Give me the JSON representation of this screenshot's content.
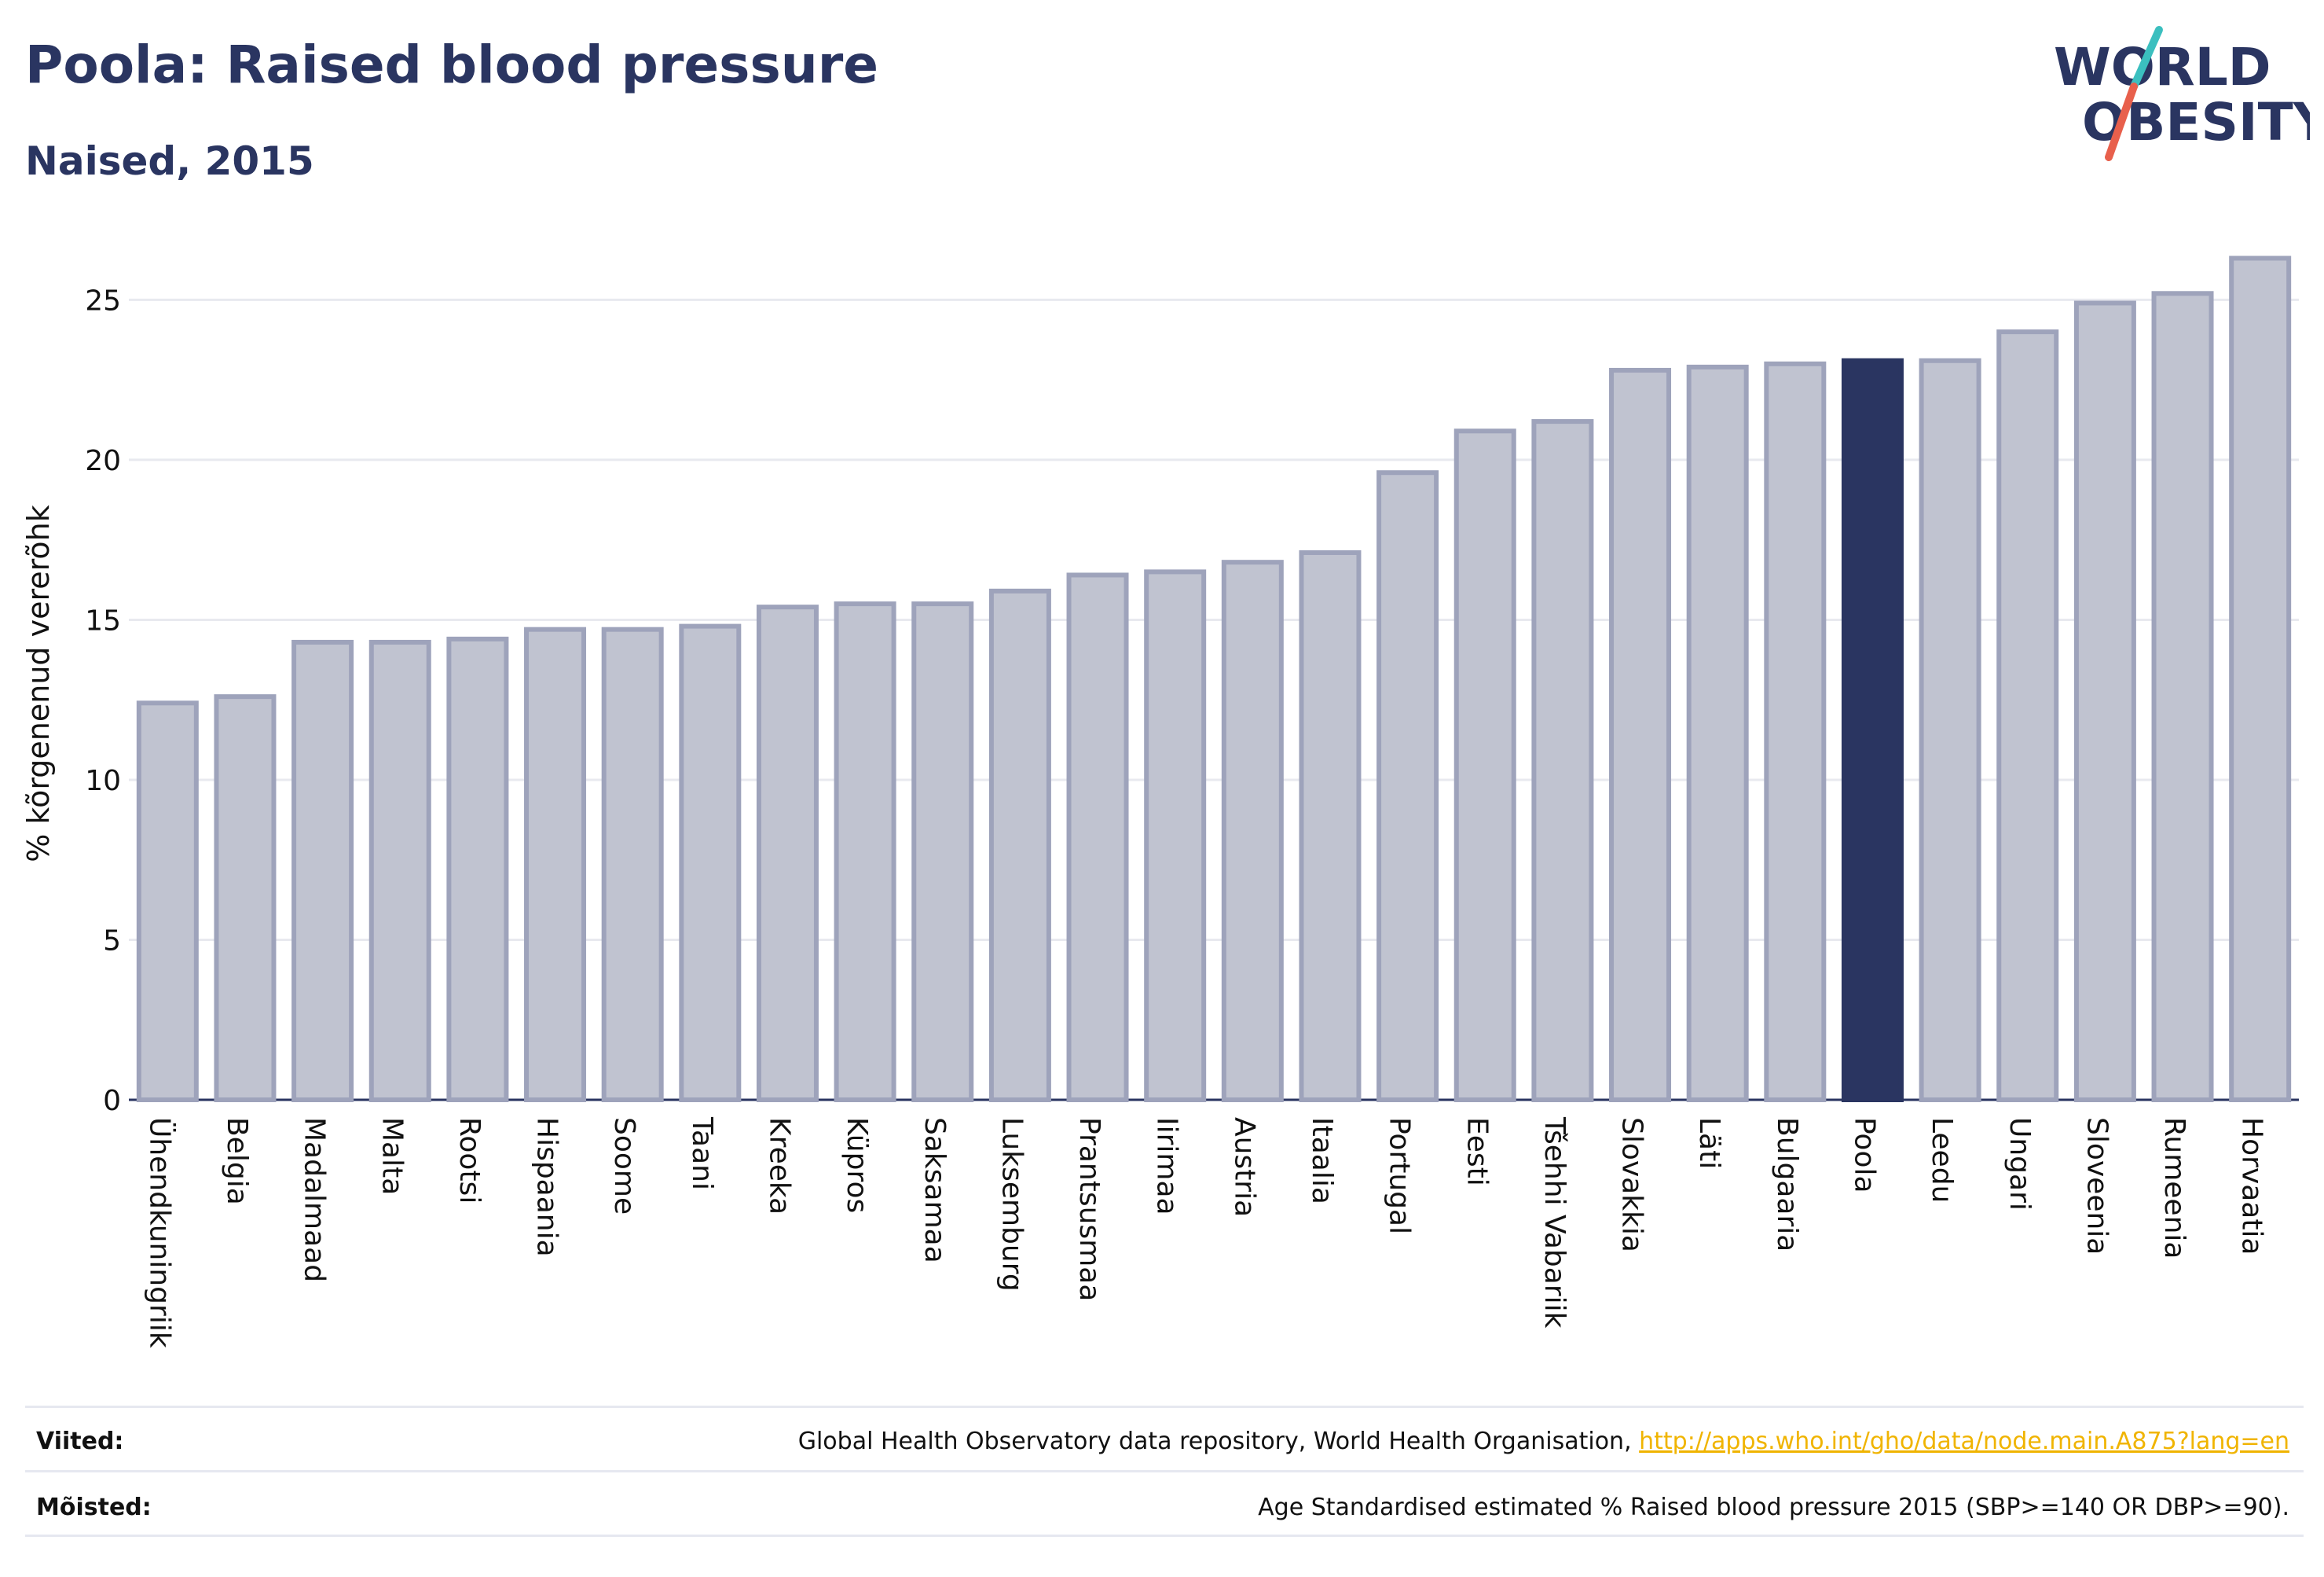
{
  "header": {
    "title": "Poola: Raised blood pressure",
    "subtitle": "Naised, 2015"
  },
  "logo": {
    "line1": "WORLD",
    "line2": "OBESITY",
    "colors": {
      "text": "#2a3561",
      "slash_top": "#3bbfbf",
      "slash_bottom": "#e8604c"
    }
  },
  "chart_data": {
    "type": "bar",
    "ylabel": "% kõrgenenud vererõhk",
    "xlabel": "",
    "ylim": [
      0,
      27
    ],
    "yticks": [
      0,
      5,
      10,
      15,
      20,
      25
    ],
    "grid": true,
    "highlight": "Poola",
    "colors": {
      "bar": "#c0c3d0",
      "bar_edge": "#9ea3bb",
      "highlight": "#2a3561",
      "grid": "#e8e9ef"
    },
    "categories": [
      "Ühendkuningriik",
      "Belgia",
      "Madalmaad",
      "Malta",
      "Rootsi",
      "Hispaania",
      "Soome",
      "Taani",
      "Kreeka",
      "Küpros",
      "Saksamaa",
      "Luksemburg",
      "Prantsusmaa",
      "Iirimaa",
      "Austria",
      "Itaalia",
      "Portugal",
      "Eesti",
      "Tšehhi Vabariik",
      "Slovakkia",
      "Läti",
      "Bulgaaria",
      "Poola",
      "Leedu",
      "Ungari",
      "Sloveenia",
      "Rumeenia",
      "Horvaatia"
    ],
    "values": [
      12.4,
      12.6,
      14.3,
      14.3,
      14.4,
      14.7,
      14.7,
      14.8,
      15.4,
      15.5,
      15.5,
      15.9,
      16.4,
      16.5,
      16.8,
      17.1,
      19.6,
      20.9,
      21.2,
      22.8,
      22.9,
      23.0,
      23.1,
      23.1,
      24.0,
      24.9,
      25.2,
      26.3
    ]
  },
  "footer": {
    "sources_label": "Viited:",
    "sources_text": "Global Health Observatory data repository, World Health Organisation, ",
    "sources_link": "http://apps.who.int/gho/data/node.main.A875?lang=en",
    "definitions_label": "Mõisted:",
    "definitions_text": "Age Standardised estimated % Raised blood pressure 2015 (SBP>=140 OR DBP>=90)."
  }
}
